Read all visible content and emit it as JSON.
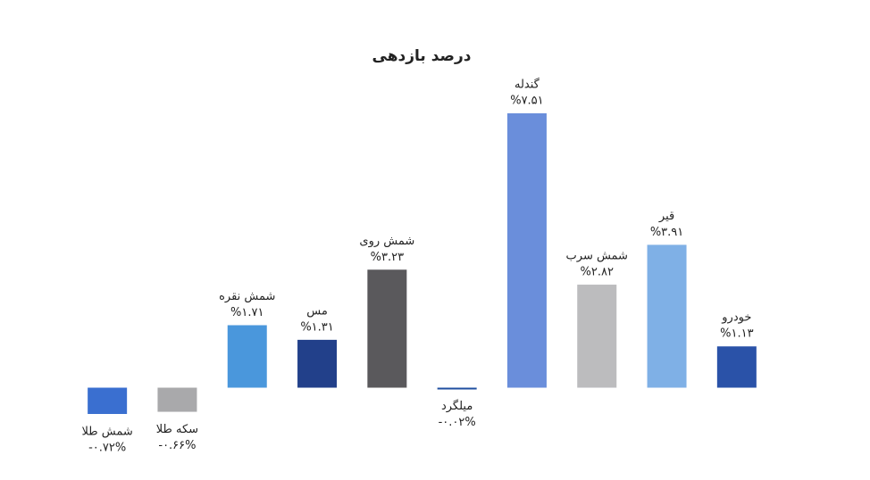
{
  "chart_data": {
    "type": "bar",
    "title": "درصد بازدهی",
    "categories": [
      "شمش طلا",
      "سکه طلا",
      "شمش نقره",
      "مس",
      "شمش روی",
      "میلگرد",
      "گندله",
      "شمش سرب",
      "قیر",
      "خودرو"
    ],
    "values": [
      -0.72,
      -0.66,
      1.71,
      1.31,
      3.23,
      -0.02,
      7.51,
      2.82,
      3.91,
      1.13
    ],
    "value_labels": [
      "-۰.۷۲%",
      "-۰.۶۶%",
      "%۱.۷۱",
      "%۱.۳۱",
      "%۳.۲۳",
      "-۰.۰۲%",
      "%۷.۵۱",
      "%۲.۸۲",
      "%۳.۹۱",
      "%۱.۱۳"
    ],
    "colors": [
      "#3a6fd0",
      "#a9a9ab",
      "#4a97dc",
      "#22408a",
      "#5a595c",
      "#1f4fa0",
      "#6a8edb",
      "#bcbcbe",
      "#7fb0e6",
      "#2a52a8"
    ]
  }
}
